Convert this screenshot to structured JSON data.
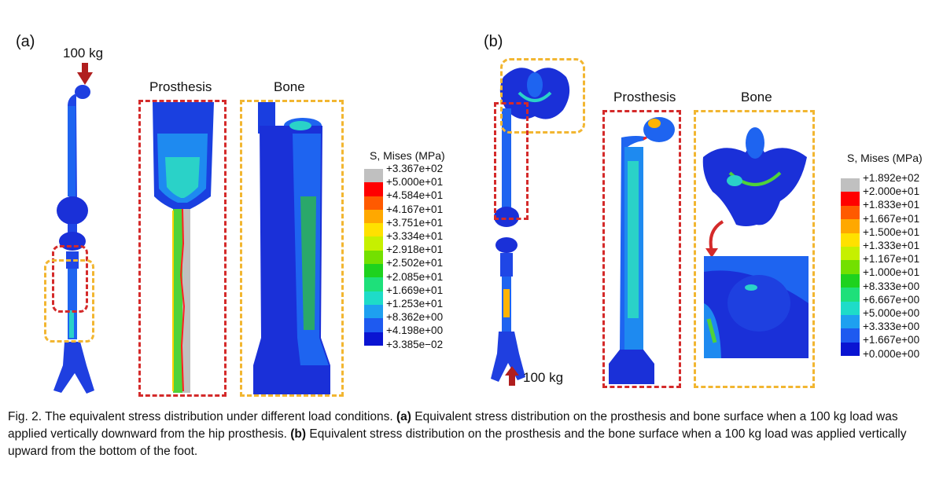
{
  "panel_a": {
    "label": "(a)",
    "load_label": "100 kg",
    "heading_prosthesis": "Prosthesis",
    "heading_bone": "Bone",
    "legend_title": "S, Mises (MPa)",
    "legend_values": [
      "+3.367e+02",
      "+5.000e+01",
      "+4.584e+01",
      "+4.167e+01",
      "+3.751e+01",
      "+3.334e+01",
      "+2.918e+01",
      "+2.502e+01",
      "+2.085e+01",
      "+1.669e+01",
      "+1.253e+01",
      "+8.362e+00",
      "+4.198e+00",
      "+3.385e−02"
    ]
  },
  "panel_b": {
    "label": "(b)",
    "load_label": "100 kg",
    "heading_prosthesis": "Prosthesis",
    "heading_bone": "Bone",
    "legend_title": "S, Mises (MPa)",
    "legend_values": [
      "+1.892e+02",
      "+2.000e+01",
      "+1.833e+01",
      "+1.667e+01",
      "+1.500e+01",
      "+1.333e+01",
      "+1.167e+01",
      "+1.000e+01",
      "+8.333e+00",
      "+6.667e+00",
      "+5.000e+00",
      "+3.333e+00",
      "+1.667e+00",
      "+0.000e+00"
    ]
  },
  "legend_colors": [
    "#c0c0c0",
    "#ff0000",
    "#ff5a00",
    "#ffa800",
    "#ffe100",
    "#c6f000",
    "#73e000",
    "#1ed21e",
    "#1ee07a",
    "#1edcc8",
    "#1ea0f0",
    "#1e5af0",
    "#0a14d2"
  ],
  "caption": {
    "fig": "Fig. 2. The equivalent stress distribution under different load conditions. ",
    "a_tag": "(a)",
    "a_text": " Equivalent stress distribution on the prosthesis and bone surface when a 100 kg load was applied vertically downward from the hip prosthesis. ",
    "b_tag": "(b)",
    "b_text": " Equivalent stress distribution on the prosthesis and the bone surface when a 100 kg load was applied vertically upward from the bottom of the foot."
  }
}
